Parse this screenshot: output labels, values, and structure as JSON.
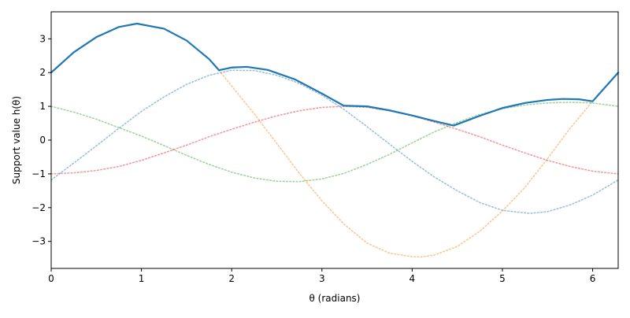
{
  "chart_data": {
    "type": "line",
    "title": "",
    "xlabel": "θ (radians)",
    "ylabel": "Support value h(θ)",
    "xlim": [
      0,
      6.283185
    ],
    "ylim": [
      -3.8,
      3.8
    ],
    "xticks": [
      0,
      1,
      2,
      3,
      4,
      5,
      6
    ],
    "yticks": [
      -3,
      -2,
      -1,
      0,
      1,
      2,
      3
    ],
    "xtick_labels": [
      "0",
      "1",
      "2",
      "3",
      "4",
      "5",
      "6"
    ],
    "ytick_labels": [
      "−3",
      "−2",
      "−1",
      "0",
      "1",
      "2",
      "3"
    ],
    "grid": false,
    "legend": "none",
    "series": [
      {
        "style": "solid",
        "color": "#1f77b4",
        "role": "upper envelope (maximum of the dotted curves)",
        "x": [
          0,
          0.25,
          0.5,
          0.75,
          0.95,
          1.25,
          1.5,
          1.75,
          1.86,
          2.0,
          2.17,
          2.4,
          2.7,
          3.0,
          3.24,
          3.5,
          3.75,
          4.0,
          4.25,
          4.46,
          4.75,
          5.0,
          5.25,
          5.5,
          5.67,
          5.85,
          6.0,
          6.15,
          6.283185
        ],
        "y": [
          2.0,
          2.6,
          3.05,
          3.35,
          3.45,
          3.3,
          2.95,
          2.4,
          2.07,
          2.15,
          2.17,
          2.08,
          1.8,
          1.38,
          1.02,
          1.0,
          0.88,
          0.73,
          0.56,
          0.43,
          0.72,
          0.95,
          1.1,
          1.19,
          1.22,
          1.21,
          1.15,
          1.6,
          2.0
        ]
      },
      {
        "style": "dotted",
        "color": "#1f77b4",
        "x": [
          0,
          0.25,
          0.5,
          0.75,
          1.0,
          1.25,
          1.5,
          1.75,
          2.0,
          2.25,
          2.5,
          2.75,
          3.0,
          3.25,
          3.5,
          3.75,
          4.0,
          4.25,
          4.5,
          4.75,
          5.0,
          5.3,
          5.5,
          5.75,
          6.0,
          6.283185
        ],
        "y": [
          -1.18,
          -0.68,
          -0.17,
          0.35,
          0.85,
          1.28,
          1.65,
          1.92,
          2.07,
          2.06,
          1.92,
          1.68,
          1.33,
          0.9,
          0.4,
          -0.12,
          -0.63,
          -1.1,
          -1.5,
          -1.85,
          -2.08,
          -2.17,
          -2.12,
          -1.92,
          -1.63,
          -1.18
        ]
      },
      {
        "style": "dotted",
        "color": "#ff7f0e",
        "x": [
          1.86,
          2.0,
          2.25,
          2.5,
          2.75,
          3.0,
          3.25,
          3.5,
          3.75,
          4.0,
          4.1,
          4.25,
          4.5,
          4.75,
          5.0,
          5.25,
          5.5,
          5.75,
          6.0
        ],
        "y": [
          2.07,
          1.6,
          0.78,
          -0.1,
          -0.98,
          -1.8,
          -2.5,
          -3.05,
          -3.35,
          -3.45,
          -3.46,
          -3.4,
          -3.15,
          -2.7,
          -2.1,
          -1.4,
          -0.55,
          0.35,
          1.15
        ]
      },
      {
        "style": "dotted",
        "color": "#2ca02c",
        "x": [
          0,
          0.25,
          0.5,
          0.75,
          1.0,
          1.25,
          1.5,
          1.75,
          2.0,
          2.25,
          2.5,
          2.75,
          3.0,
          3.25,
          3.5,
          3.75,
          4.0,
          4.25,
          4.5,
          4.75,
          5.0,
          5.25,
          5.5,
          5.75,
          6.0,
          6.283185
        ],
        "y": [
          1.0,
          0.83,
          0.62,
          0.37,
          0.12,
          -0.16,
          -0.45,
          -0.72,
          -0.95,
          -1.12,
          -1.22,
          -1.23,
          -1.15,
          -0.98,
          -0.72,
          -0.42,
          -0.08,
          0.25,
          0.52,
          0.76,
          0.93,
          1.04,
          1.1,
          1.12,
          1.1,
          1.0
        ]
      },
      {
        "style": "dotted",
        "color": "#d62728",
        "x": [
          0,
          0.25,
          0.5,
          0.75,
          1.0,
          1.25,
          1.5,
          1.75,
          2.0,
          2.25,
          2.5,
          2.75,
          3.0,
          3.25,
          3.5,
          3.75,
          4.0,
          4.25,
          4.5,
          4.75,
          5.0,
          5.25,
          5.5,
          5.75,
          6.0,
          6.283185
        ],
        "y": [
          -1.0,
          -0.97,
          -0.9,
          -0.78,
          -0.6,
          -0.38,
          -0.15,
          0.1,
          0.32,
          0.53,
          0.72,
          0.87,
          0.97,
          1.0,
          0.97,
          0.87,
          0.72,
          0.53,
          0.32,
          0.1,
          -0.15,
          -0.38,
          -0.6,
          -0.78,
          -0.92,
          -1.0
        ]
      }
    ]
  }
}
